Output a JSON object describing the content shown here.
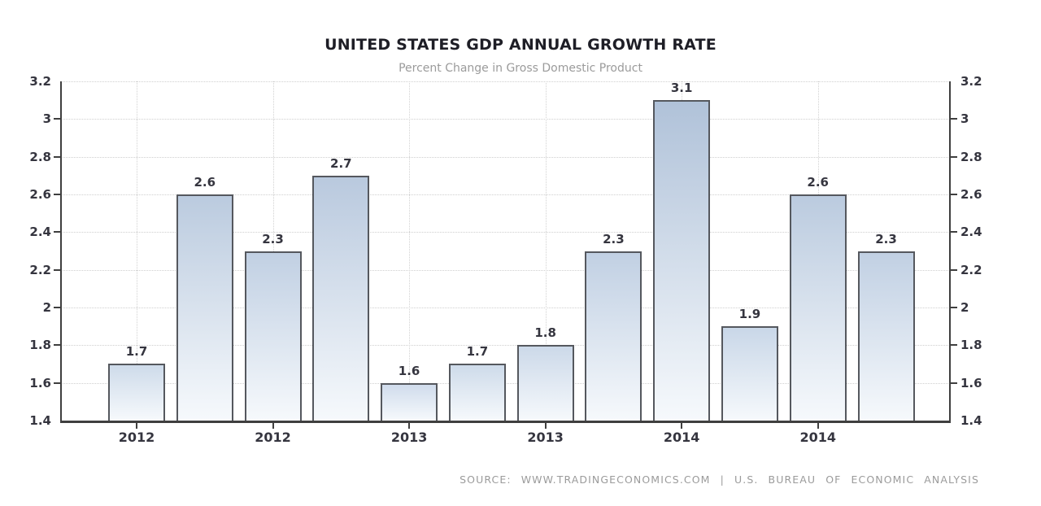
{
  "chart_data": {
    "type": "bar",
    "title": "UNITED STATES GDP ANNUAL GROWTH RATE",
    "subtitle": "Percent Change in Gross Domestic Product",
    "source": "SOURCE: WWW.TRADINGECONOMICS.COM | U.S. BUREAU OF ECONOMIC ANALYSIS",
    "values": [
      1.7,
      2.6,
      2.3,
      2.7,
      1.6,
      1.7,
      1.8,
      2.3,
      3.1,
      1.9,
      2.6,
      2.3
    ],
    "bar_labels": [
      "1.7",
      "2.6",
      "2.3",
      "2.7",
      "1.6",
      "1.7",
      "1.8",
      "2.3",
      "3.1",
      "1.9",
      "2.6",
      "2.3"
    ],
    "x_ticks": [
      {
        "bar_index": 0,
        "label": "2012"
      },
      {
        "bar_index": 2,
        "label": "2012"
      },
      {
        "bar_index": 4,
        "label": "2013"
      },
      {
        "bar_index": 6,
        "label": "2013"
      },
      {
        "bar_index": 8,
        "label": "2014"
      },
      {
        "bar_index": 10,
        "label": "2014"
      }
    ],
    "y_ticks": [
      "3.2",
      "3",
      "2.8",
      "2.6",
      "2.4",
      "2.2",
      "2",
      "1.8",
      "1.6",
      "1.4"
    ],
    "ylim": [
      1.4,
      3.2
    ],
    "grid": "dotted horizontal and vertical",
    "legend": "none",
    "colors": {
      "background": "#ffffff",
      "bar_gradient_top_max": "#aec0d8",
      "bar_gradient_top_min": "#d4e0ee",
      "bar_gradient_bottom": "#f6f9fc",
      "bar_border": "#55585e",
      "axis_line": "#3f3f3f",
      "grid_line": "#cfcfcf",
      "tick_label": "#35353f",
      "title": "#1e1e26",
      "subtitle": "#9b9b9b",
      "source": "#9b9b9b"
    }
  }
}
